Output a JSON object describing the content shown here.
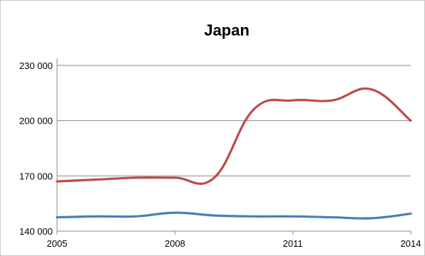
{
  "chart_data": {
    "type": "line",
    "title": "Japan",
    "xlabel": "",
    "ylabel": "",
    "x": [
      2005,
      2006,
      2007,
      2008,
      2009,
      2010,
      2011,
      2012,
      2013,
      2014
    ],
    "x_tick_labels": [
      "2005",
      "2008",
      "2011",
      "2014"
    ],
    "y_tick_labels": [
      "140 000",
      "170 000",
      "200 000",
      "230 000"
    ],
    "ylim": [
      140000,
      230000
    ],
    "grid": true,
    "legend": "none",
    "series": [
      {
        "color": "#be4b48",
        "values": [
          167000,
          168000,
          169000,
          169000,
          169000,
          206000,
          211000,
          211000,
          217000,
          200000
        ]
      },
      {
        "color": "#4a7ebb",
        "values": [
          147500,
          148000,
          148000,
          150000,
          148500,
          148000,
          148000,
          147500,
          147000,
          149500
        ]
      }
    ]
  }
}
